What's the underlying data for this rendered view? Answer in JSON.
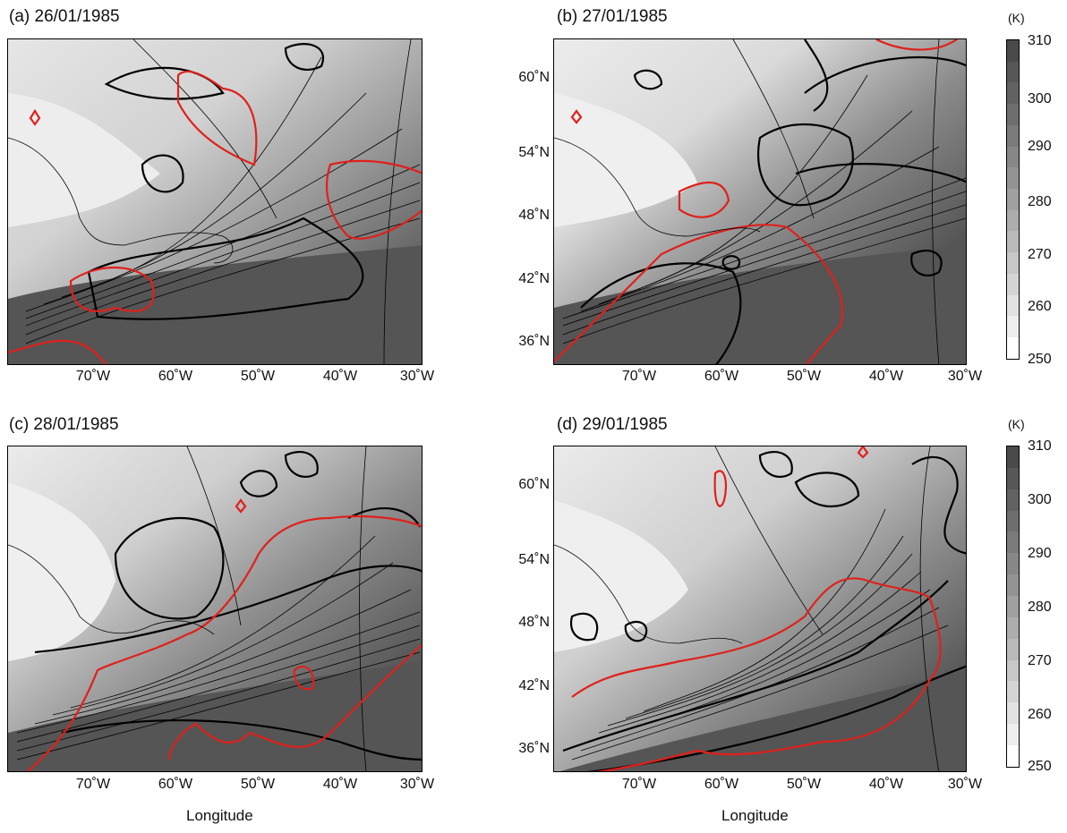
{
  "figure": {
    "panels": [
      {
        "id": "a",
        "title": "(a) 26/01/1985",
        "x_ticks": [
          "70˚W",
          "60˚W",
          "50˚W",
          "40˚W",
          "30˚W"
        ],
        "y_ticks": [],
        "xlabel": ""
      },
      {
        "id": "b",
        "title": "(b) 27/01/1985",
        "x_ticks": [
          "70˚W",
          "60˚W",
          "50˚W",
          "40˚W",
          "30˚W"
        ],
        "y_ticks": [
          "60˚N",
          "54˚N",
          "48˚N",
          "42˚N",
          "36˚N"
        ],
        "xlabel": ""
      },
      {
        "id": "c",
        "title": "(c) 28/01/1985",
        "x_ticks": [
          "70˚W",
          "60˚W",
          "50˚W",
          "40˚W",
          "30˚W"
        ],
        "y_ticks": [],
        "xlabel": "Longitude"
      },
      {
        "id": "d",
        "title": "(d) 29/01/1985",
        "x_ticks": [
          "70˚W",
          "60˚W",
          "50˚W",
          "40˚W",
          "30˚W"
        ],
        "y_ticks": [
          "60˚N",
          "54˚N",
          "48˚N",
          "42˚N",
          "36˚N"
        ],
        "xlabel": "Longitude"
      }
    ],
    "colorbar": {
      "unit": "(K)",
      "ticks": [
        "310",
        "300",
        "290",
        "280",
        "270",
        "260",
        "250"
      ],
      "levels": [
        "#4a4a4a",
        "#575757",
        "#626262",
        "#6e6e6e",
        "#7a7a7a",
        "#878787",
        "#939393",
        "#a0a0a0",
        "#adadad",
        "#bababa",
        "#c7c7c7",
        "#d4d4d4",
        "#e2e2e2",
        "#efefef",
        "#ffffff"
      ]
    },
    "colors": {
      "contour_red": "#e0201b",
      "contour_black": "#000000"
    }
  }
}
